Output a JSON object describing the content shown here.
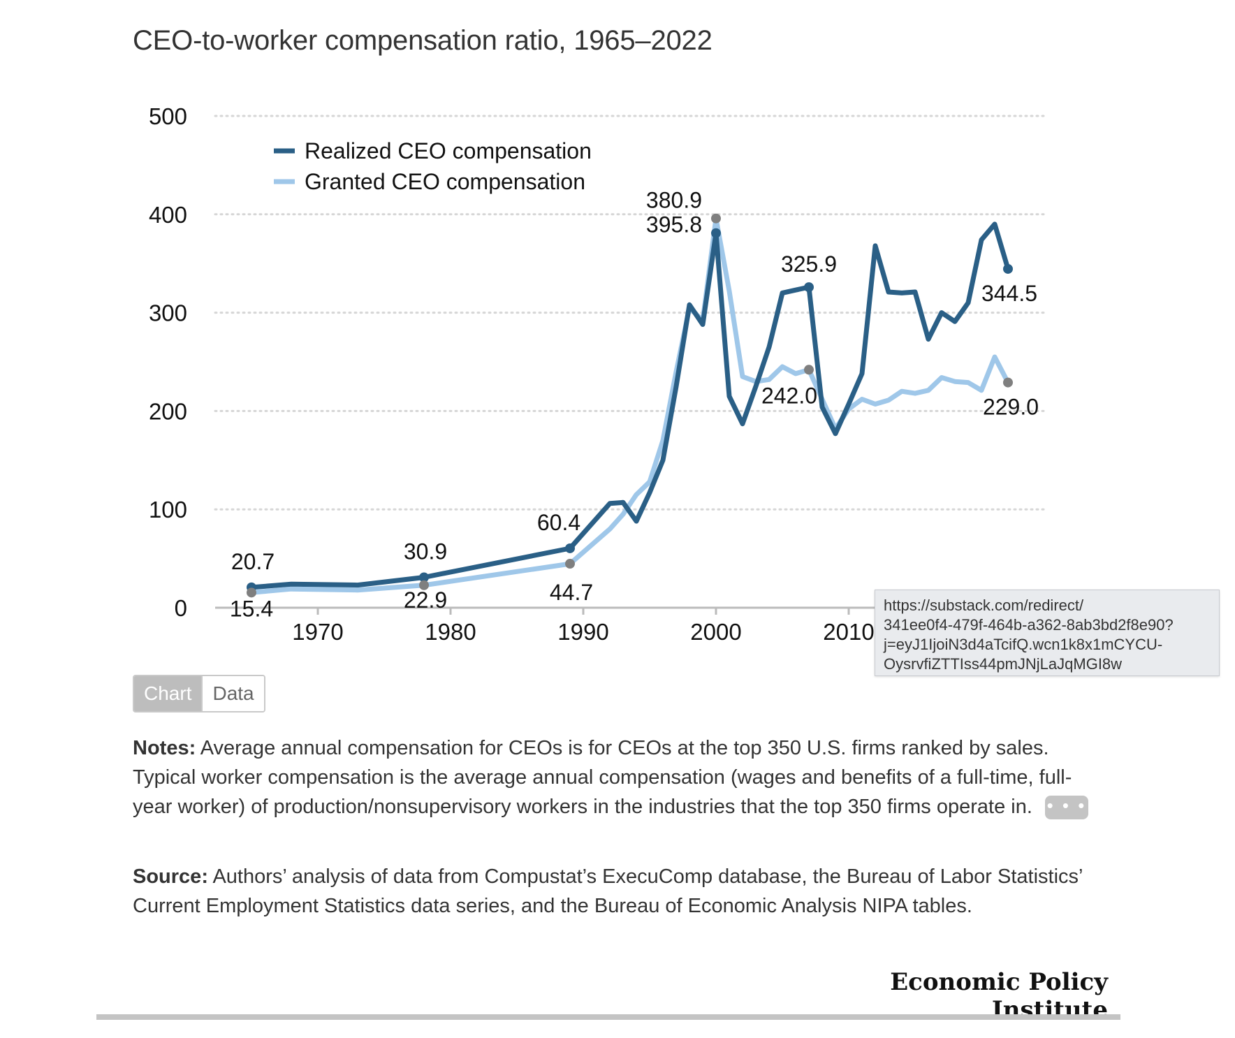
{
  "header": {
    "title": "CEO-to-worker compensation ratio, 1965–2022"
  },
  "toggle": {
    "chart_label": "Chart",
    "data_label": "Data"
  },
  "notes": {
    "label": "Notes:",
    "text": "Average annual compensation for CEOs is for CEOs at the top 350 U.S. firms ranked by sales. Typical worker compensation is the average annual compensation (wages and benefits of a full-time, full-year worker) of production/nonsupervisory workers in the industries that the top 350 firms operate in.",
    "more_label": "• • •"
  },
  "source": {
    "label": "Source:",
    "text": "Authors’ analysis of data from Compustat’s ExecuComp database, the Bureau of Labor Statistics’ Current Employment Statistics data series, and the Bureau of Economic Analysis NIPA tables."
  },
  "branding": {
    "logo_text": "Economic Policy Institute"
  },
  "tooltip": {
    "lines": [
      "https://substack.com/redirect/",
      "341ee0f4-479f-464b-a362-8ab3bd2f8e90?",
      "j=eyJ1IjoiN3d4aTcifQ.wcn1k8x1mCYCU-",
      "OysrvfiZTTIss44pmJNjLaJqMGI8w"
    ]
  },
  "colors": {
    "realized": "#2a5f86",
    "granted": "#9fc7e9",
    "marker_gray": "#7f7f7f",
    "grid": "#d6d6d6",
    "axis": "#bbbbbb"
  },
  "chart_data": {
    "type": "line",
    "title": "CEO-to-worker compensation ratio, 1965–2022",
    "xlabel": "",
    "ylabel": "",
    "xlim": [
      1965,
      2022
    ],
    "ylim": [
      0,
      500
    ],
    "x_ticks": [
      1970,
      1980,
      1990,
      2000,
      2010
    ],
    "y_ticks": [
      0,
      100,
      200,
      300,
      400,
      500
    ],
    "grid": "horizontal dotted",
    "legend": "top-left",
    "series": [
      {
        "name": "Realized CEO compensation",
        "x": [
          1965,
          1968,
          1973,
          1978,
          1989,
          1992,
          1993,
          1994,
          1995,
          1996,
          1997,
          1998,
          1999,
          2000,
          2001,
          2002,
          2003,
          2004,
          2005,
          2006,
          2007,
          2008,
          2009,
          2010,
          2011,
          2012,
          2013,
          2014,
          2015,
          2016,
          2017,
          2018,
          2019,
          2020,
          2021,
          2022
        ],
        "values": [
          20.7,
          24,
          23,
          30.9,
          60.4,
          106,
          107,
          88,
          117,
          150,
          225,
          308,
          288,
          380.9,
          215,
          187,
          225,
          265,
          320,
          323,
          325.9,
          204,
          177,
          207,
          238,
          368,
          321,
          320,
          321,
          273,
          300,
          291,
          310,
          374,
          390,
          344.5
        ]
      },
      {
        "name": "Granted CEO compensation",
        "x": [
          1965,
          1968,
          1973,
          1978,
          1989,
          1992,
          1993,
          1994,
          1995,
          1996,
          1997,
          1998,
          1999,
          2000,
          2001,
          2002,
          2003,
          2004,
          2005,
          2006,
          2007,
          2008,
          2009,
          2010,
          2011,
          2012,
          2013,
          2014,
          2015,
          2016,
          2017,
          2018,
          2019,
          2020,
          2021,
          2022
        ],
        "values": [
          15.4,
          19,
          18,
          22.9,
          44.7,
          80,
          95,
          115,
          128,
          170,
          240,
          305,
          292,
          395.8,
          322,
          235,
          230,
          232,
          245,
          238,
          242.0,
          212,
          182,
          202,
          212,
          207,
          211,
          220,
          218,
          221,
          234,
          230,
          229,
          221,
          255,
          229.0
        ]
      }
    ],
    "annotations": [
      {
        "series": "Realized CEO compensation",
        "x": 1965,
        "y": 20.7,
        "label": "20.7"
      },
      {
        "series": "Realized CEO compensation",
        "x": 1978,
        "y": 30.9,
        "label": "30.9"
      },
      {
        "series": "Realized CEO compensation",
        "x": 1989,
        "y": 60.4,
        "label": "60.4"
      },
      {
        "series": "Realized CEO compensation",
        "x": 2000,
        "y": 380.9,
        "label": "380.9"
      },
      {
        "series": "Realized CEO compensation",
        "x": 2007,
        "y": 325.9,
        "label": "325.9"
      },
      {
        "series": "Realized CEO compensation",
        "x": 2022,
        "y": 344.5,
        "label": "344.5"
      },
      {
        "series": "Granted CEO compensation",
        "x": 1965,
        "y": 15.4,
        "label": "15.4"
      },
      {
        "series": "Granted CEO compensation",
        "x": 1978,
        "y": 22.9,
        "label": "22.9"
      },
      {
        "series": "Granted CEO compensation",
        "x": 1989,
        "y": 44.7,
        "label": "44.7"
      },
      {
        "series": "Granted CEO compensation",
        "x": 2000,
        "y": 395.8,
        "label": "395.8"
      },
      {
        "series": "Granted CEO compensation",
        "x": 2007,
        "y": 242.0,
        "label": "242.0"
      },
      {
        "series": "Granted CEO compensation",
        "x": 2022,
        "y": 229.0,
        "label": "229.0"
      }
    ]
  }
}
